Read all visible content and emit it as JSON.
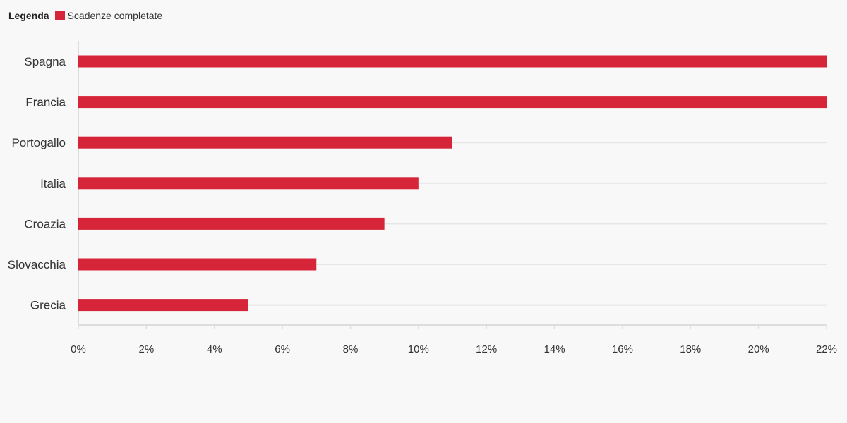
{
  "legend": {
    "title": "Legenda",
    "series_label": "Scadenze completate"
  },
  "colors": {
    "bar": "#d62438",
    "grid": "#e6e6e6",
    "axis": "#dddddd",
    "background": "#f8f8f8"
  },
  "chart_data": {
    "type": "bar",
    "orientation": "horizontal",
    "categories": [
      "Spagna",
      "Francia",
      "Portogallo",
      "Italia",
      "Croazia",
      "Slovacchia",
      "Grecia"
    ],
    "series": [
      {
        "name": "Scadenze completate",
        "values": [
          22,
          22,
          11,
          10,
          9,
          7,
          5
        ]
      }
    ],
    "xlim": [
      0,
      22
    ],
    "xticks": [
      0,
      2,
      4,
      6,
      8,
      10,
      12,
      14,
      16,
      18,
      20,
      22
    ],
    "tick_suffix": "%",
    "grid": true,
    "legend_position": "top-left",
    "title": "",
    "xlabel": "",
    "ylabel": ""
  }
}
